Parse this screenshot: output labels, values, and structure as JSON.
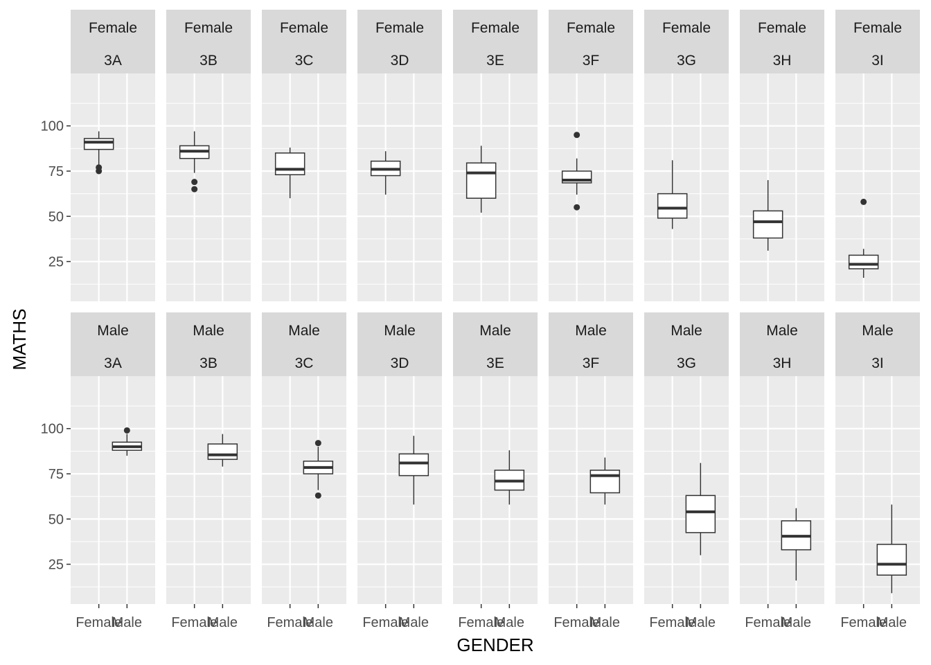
{
  "chart_data": {
    "type": "boxplot",
    "xlabel": "GENDER",
    "ylabel": "MATHS",
    "x_categories": [
      "Female",
      "Male"
    ],
    "y_ticks": [
      25,
      50,
      75,
      100
    ],
    "ylim": [
      3,
      129
    ],
    "facet_rows": [
      "Female",
      "Male"
    ],
    "facet_cols": [
      "3A",
      "3B",
      "3C",
      "3D",
      "3E",
      "3F",
      "3G",
      "3H",
      "3I"
    ],
    "grid": true,
    "panels": [
      {
        "row": "Female",
        "class": "3A",
        "box": {
          "x": "Female",
          "min": 77,
          "q1": 87,
          "median": 91,
          "q3": 93,
          "max": 97,
          "outliers": [
            75,
            77
          ]
        }
      },
      {
        "row": "Female",
        "class": "3B",
        "box": {
          "x": "Female",
          "min": 74,
          "q1": 82,
          "median": 86,
          "q3": 89,
          "max": 97,
          "outliers": [
            65,
            69
          ]
        }
      },
      {
        "row": "Female",
        "class": "3C",
        "box": {
          "x": "Female",
          "min": 60,
          "q1": 73,
          "median": 76,
          "q3": 85,
          "max": 88,
          "outliers": []
        }
      },
      {
        "row": "Female",
        "class": "3D",
        "box": {
          "x": "Female",
          "min": 62,
          "q1": 72.5,
          "median": 76,
          "q3": 80.5,
          "max": 86,
          "outliers": []
        }
      },
      {
        "row": "Female",
        "class": "3E",
        "box": {
          "x": "Female",
          "min": 52,
          "q1": 60,
          "median": 74,
          "q3": 79.5,
          "max": 89,
          "outliers": []
        }
      },
      {
        "row": "Female",
        "class": "3F",
        "box": {
          "x": "Female",
          "min": 62,
          "q1": 68.5,
          "median": 70,
          "q3": 75,
          "max": 82,
          "outliers": [
            55,
            95
          ]
        }
      },
      {
        "row": "Female",
        "class": "3G",
        "box": {
          "x": "Female",
          "min": 43,
          "q1": 49,
          "median": 54.5,
          "q3": 62.5,
          "max": 81,
          "outliers": []
        }
      },
      {
        "row": "Female",
        "class": "3H",
        "box": {
          "x": "Female",
          "min": 31,
          "q1": 38,
          "median": 47,
          "q3": 53,
          "max": 70,
          "outliers": []
        }
      },
      {
        "row": "Female",
        "class": "3I",
        "box": {
          "x": "Female",
          "min": 16,
          "q1": 21,
          "median": 23.5,
          "q3": 28.5,
          "max": 32,
          "outliers": [
            58
          ]
        }
      },
      {
        "row": "Male",
        "class": "3A",
        "box": {
          "x": "Male",
          "min": 85,
          "q1": 88,
          "median": 90,
          "q3": 92.5,
          "max": 97,
          "outliers": [
            99
          ]
        }
      },
      {
        "row": "Male",
        "class": "3B",
        "box": {
          "x": "Male",
          "min": 79,
          "q1": 83,
          "median": 85.5,
          "q3": 91.5,
          "max": 97,
          "outliers": []
        }
      },
      {
        "row": "Male",
        "class": "3C",
        "box": {
          "x": "Male",
          "min": 66,
          "q1": 75,
          "median": 78.5,
          "q3": 82,
          "max": 90,
          "outliers": [
            63,
            92
          ]
        }
      },
      {
        "row": "Male",
        "class": "3D",
        "box": {
          "x": "Male",
          "min": 58,
          "q1": 74,
          "median": 81,
          "q3": 86,
          "max": 96,
          "outliers": []
        }
      },
      {
        "row": "Male",
        "class": "3E",
        "box": {
          "x": "Male",
          "min": 58,
          "q1": 66,
          "median": 71,
          "q3": 77,
          "max": 88,
          "outliers": []
        }
      },
      {
        "row": "Male",
        "class": "3F",
        "box": {
          "x": "Male",
          "min": 58,
          "q1": 64.5,
          "median": 74,
          "q3": 77,
          "max": 84,
          "outliers": []
        }
      },
      {
        "row": "Male",
        "class": "3G",
        "box": {
          "x": "Male",
          "min": 30,
          "q1": 42.5,
          "median": 54,
          "q3": 63,
          "max": 81,
          "outliers": []
        }
      },
      {
        "row": "Male",
        "class": "3H",
        "box": {
          "x": "Male",
          "min": 16,
          "q1": 33,
          "median": 40.5,
          "q3": 49,
          "max": 56,
          "outliers": []
        }
      },
      {
        "row": "Male",
        "class": "3I",
        "box": {
          "x": "Male",
          "min": 9,
          "q1": 19,
          "median": 25,
          "q3": 36,
          "max": 58,
          "outliers": []
        }
      }
    ]
  },
  "colors": {
    "panel_background": "#ebebeb",
    "strip_background": "#d9d9d9",
    "grid_line": "#ffffff",
    "box_stroke": "#333333",
    "box_fill": "#ffffff"
  }
}
